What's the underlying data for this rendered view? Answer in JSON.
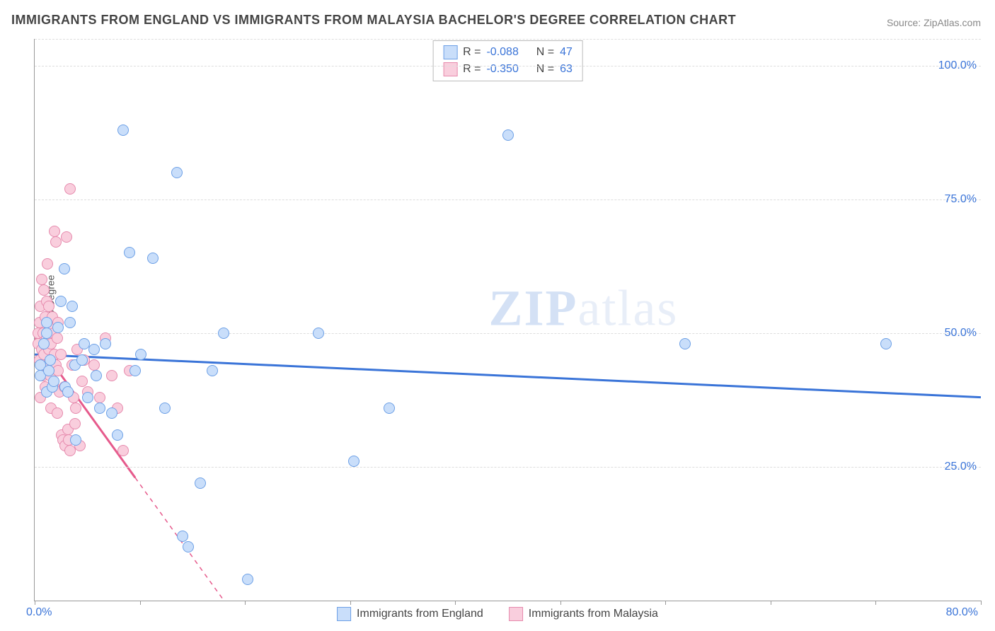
{
  "title": "IMMIGRANTS FROM ENGLAND VS IMMIGRANTS FROM MALAYSIA BACHELOR'S DEGREE CORRELATION CHART",
  "source": "Source: ZipAtlas.com",
  "ylabel": "Bachelor's Degree",
  "watermark_a": "ZIP",
  "watermark_b": "atlas",
  "chart": {
    "type": "scatter",
    "background_color": "#ffffff",
    "grid_color": "#dddddd",
    "axis_color": "#999999",
    "xlim": [
      0,
      80
    ],
    "ylim": [
      0,
      105
    ],
    "xticks": [
      0,
      8.89,
      17.78,
      26.67,
      35.56,
      44.44,
      53.33,
      62.22,
      71.11,
      80
    ],
    "yticks": [
      25,
      50,
      75,
      100
    ],
    "ytick_labels": [
      "25.0%",
      "50.0%",
      "75.0%",
      "100.0%"
    ],
    "x_origin_label": "0.0%",
    "x_max_label": "80.0%",
    "marker_radius": 8,
    "series": [
      {
        "name": "Immigrants from England",
        "fill": "#c9defa",
        "stroke": "#6da0e6",
        "line_color": "#3a74d8",
        "line_width": 3,
        "line_dash": "none",
        "R": "-0.088",
        "N": "47",
        "trend": {
          "x1": 0,
          "y1": 46,
          "x2": 80,
          "y2": 38
        },
        "points": [
          [
            0.5,
            42
          ],
          [
            0.5,
            44
          ],
          [
            0.8,
            48
          ],
          [
            1.0,
            50
          ],
          [
            1.0,
            52
          ],
          [
            1.0,
            39
          ],
          [
            1.2,
            43
          ],
          [
            1.3,
            45
          ],
          [
            1.5,
            40
          ],
          [
            1.6,
            41
          ],
          [
            2.0,
            51
          ],
          [
            2.2,
            56
          ],
          [
            2.5,
            62
          ],
          [
            2.6,
            40
          ],
          [
            2.8,
            39
          ],
          [
            3.0,
            52
          ],
          [
            3.2,
            55
          ],
          [
            3.4,
            44
          ],
          [
            3.5,
            30
          ],
          [
            4.0,
            45
          ],
          [
            4.2,
            48
          ],
          [
            4.5,
            38
          ],
          [
            5.0,
            47
          ],
          [
            5.2,
            42
          ],
          [
            5.5,
            36
          ],
          [
            6.0,
            48
          ],
          [
            6.5,
            35
          ],
          [
            7.0,
            31
          ],
          [
            7.5,
            88
          ],
          [
            8.0,
            65
          ],
          [
            8.5,
            43
          ],
          [
            9.0,
            46
          ],
          [
            10.0,
            64
          ],
          [
            11.0,
            36
          ],
          [
            12.0,
            80
          ],
          [
            12.5,
            12
          ],
          [
            13.0,
            10
          ],
          [
            14.0,
            22
          ],
          [
            15.0,
            43
          ],
          [
            16.0,
            50
          ],
          [
            18.0,
            4
          ],
          [
            24.0,
            50
          ],
          [
            27.0,
            26
          ],
          [
            30.0,
            36
          ],
          [
            40.0,
            87
          ],
          [
            55.0,
            48
          ],
          [
            72.0,
            48
          ]
        ]
      },
      {
        "name": "Immigrants from Malaysia",
        "fill": "#f9cedd",
        "stroke": "#e68aad",
        "line_color": "#e65a8c",
        "line_width": 3,
        "line_dash": "solid_then_dash",
        "R": "-0.350",
        "N": "63",
        "trend": {
          "x1": 0,
          "y1": 49,
          "x2": 16,
          "y2": 0
        },
        "trend_solid_end_x": 8.5,
        "points": [
          [
            0.3,
            48
          ],
          [
            0.3,
            50
          ],
          [
            0.4,
            45
          ],
          [
            0.4,
            52
          ],
          [
            0.5,
            38
          ],
          [
            0.5,
            55
          ],
          [
            0.6,
            47
          ],
          [
            0.6,
            60
          ],
          [
            0.7,
            42
          ],
          [
            0.7,
            50
          ],
          [
            0.8,
            46
          ],
          [
            0.8,
            58
          ],
          [
            0.9,
            40
          ],
          [
            0.9,
            53
          ],
          [
            1.0,
            49
          ],
          [
            1.0,
            56
          ],
          [
            1.1,
            44
          ],
          [
            1.1,
            63
          ],
          [
            1.2,
            47
          ],
          [
            1.2,
            55
          ],
          [
            1.3,
            42
          ],
          [
            1.3,
            51
          ],
          [
            1.4,
            48
          ],
          [
            1.4,
            36
          ],
          [
            1.5,
            45
          ],
          [
            1.5,
            53
          ],
          [
            1.6,
            40
          ],
          [
            1.6,
            50
          ],
          [
            1.7,
            69
          ],
          [
            1.7,
            46
          ],
          [
            1.8,
            44
          ],
          [
            1.8,
            67
          ],
          [
            1.9,
            49
          ],
          [
            1.9,
            35
          ],
          [
            2.0,
            43
          ],
          [
            2.0,
            52
          ],
          [
            2.1,
            39
          ],
          [
            2.2,
            46
          ],
          [
            2.3,
            31
          ],
          [
            2.4,
            30
          ],
          [
            2.5,
            40
          ],
          [
            2.6,
            29
          ],
          [
            2.7,
            68
          ],
          [
            2.8,
            32
          ],
          [
            2.9,
            30
          ],
          [
            3.0,
            28
          ],
          [
            3.0,
            77
          ],
          [
            3.2,
            44
          ],
          [
            3.3,
            38
          ],
          [
            3.4,
            33
          ],
          [
            3.5,
            36
          ],
          [
            3.6,
            47
          ],
          [
            3.8,
            29
          ],
          [
            4.0,
            41
          ],
          [
            4.2,
            45
          ],
          [
            4.5,
            39
          ],
          [
            5.0,
            44
          ],
          [
            5.5,
            38
          ],
          [
            6.0,
            49
          ],
          [
            6.5,
            42
          ],
          [
            7.0,
            36
          ],
          [
            7.5,
            28
          ],
          [
            8.0,
            43
          ]
        ]
      }
    ]
  },
  "legend": {
    "r_label": "R =",
    "n_label": "N ="
  }
}
